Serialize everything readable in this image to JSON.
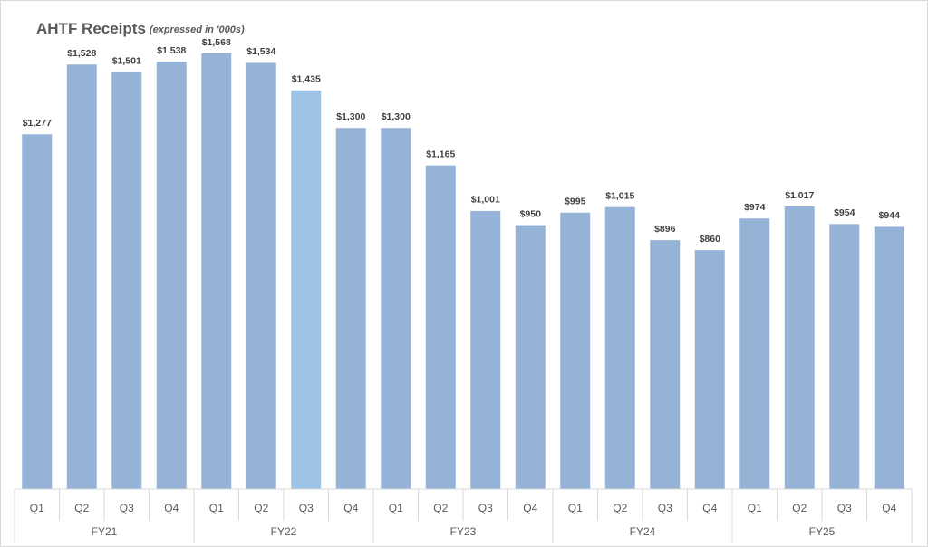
{
  "chart_data": {
    "type": "bar",
    "title": "AHTF Receipts",
    "subtitle": "(expressed in '000s)",
    "categories": [
      "Q1",
      "Q2",
      "Q3",
      "Q4",
      "Q1",
      "Q2",
      "Q3",
      "Q4",
      "Q1",
      "Q2",
      "Q3",
      "Q4",
      "Q1",
      "Q2",
      "Q3",
      "Q4",
      "Q1",
      "Q2",
      "Q3",
      "Q4"
    ],
    "groups": [
      "FY21",
      "FY22",
      "FY23",
      "FY24",
      "FY25"
    ],
    "values": [
      1277,
      1528,
      1501,
      1538,
      1568,
      1534,
      1435,
      1300,
      1300,
      1165,
      1001,
      950,
      995,
      1015,
      896,
      860,
      974,
      1017,
      954,
      944
    ],
    "value_labels": [
      "$1,277",
      "$1,528",
      "$1,501",
      "$1,538",
      "$1,568",
      "$1,534",
      "$1,435",
      "$1,300",
      "$1,300",
      "$1,165",
      "$1,001",
      "$950",
      "$995",
      "$1,015",
      "$896",
      "$860",
      "$974",
      "$1,017",
      "$954",
      "$944"
    ],
    "colors": [
      "#95b3d7",
      "#95b3d7",
      "#95b3d7",
      "#95b3d7",
      "#95b3d7",
      "#95b3d7",
      "#9dc3e6",
      "#95b3d7",
      "#95b3d7",
      "#95b3d7",
      "#95b3d7",
      "#95b3d7",
      "#95b3d7",
      "#95b3d7",
      "#95b3d7",
      "#95b3d7",
      "#95b3d7",
      "#95b3d7",
      "#95b3d7",
      "#95b3d7"
    ],
    "grid": false
  }
}
